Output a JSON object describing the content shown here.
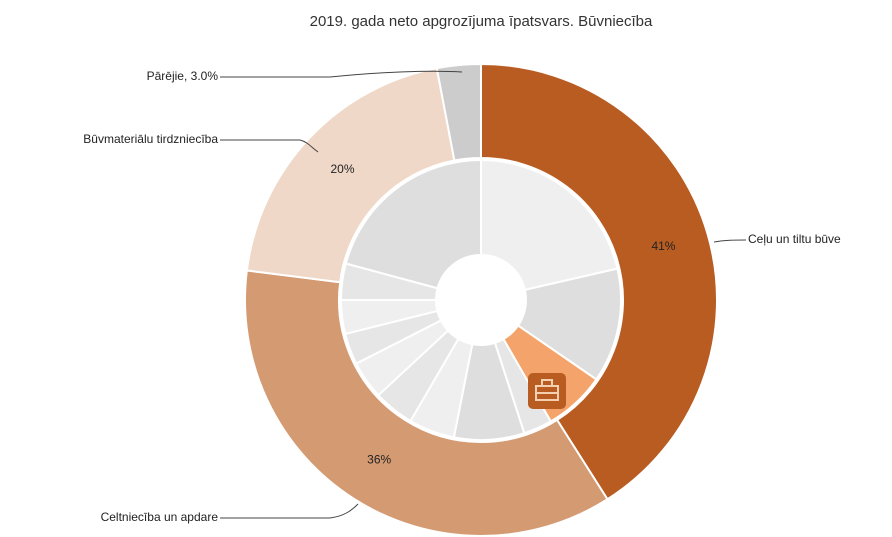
{
  "chart_data": {
    "type": "donut",
    "title": "2019. gada neto apgrozījuma īpatsvars. Būvniecība",
    "categories": [
      "Ceļu un tiltu būve",
      "Celtniecība un apdare",
      "Būvmateriālu tirdzniecība",
      null
    ],
    "values": [
      41,
      36,
      20,
      3.0
    ],
    "value_labels": [
      "41%",
      "36%",
      "20%",
      "Pārējie, 3.0%"
    ],
    "colors": [
      "#b85c22",
      "#d49a72",
      "#efd8c8",
      "#cccccc"
    ],
    "inner": {
      "values": [
        21.4,
        13.2,
        7.1,
        3.3,
        8.1,
        5.3,
        4.7,
        4.4,
        3.6,
        3.9,
        4.2,
        20.8
      ],
      "colors": [
        "#efefef",
        "#dedede",
        "#f4a46a",
        "#e6e6e6",
        "#dedede",
        "#efefef",
        "#e6e6e6",
        "#efefef",
        "#e6e6e6",
        "#efefef",
        "#e6e6e6",
        "#dedede"
      ]
    }
  }
}
